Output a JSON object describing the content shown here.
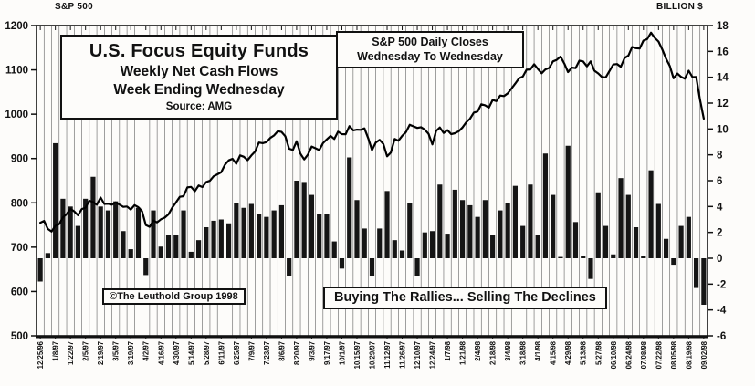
{
  "header": {
    "left_axis_title": "S&P 500",
    "right_axis_title": "BILLION $"
  },
  "title_box": {
    "line1": "U.S. Focus Equity Funds",
    "line2": "Weekly Net Cash Flows",
    "line3": "Week Ending Wednesday",
    "line4": "Source: AMG"
  },
  "legend_box": {
    "line1": "S&P 500 Daily Closes",
    "line2": "Wednesday To Wednesday"
  },
  "annotations": {
    "copyright": "©The Leuthold Group 1998",
    "slogan": "Buying The Rallies... Selling The Declines"
  },
  "colors": {
    "bar": "#151515",
    "line": "#000000",
    "grid": "#606060",
    "frame": "#111111",
    "background": "#fdfcfa"
  },
  "chart_data": {
    "type": "bar",
    "title": "U.S. Focus Equity Funds Weekly Net Cash Flows vs S&P 500",
    "xlabel": "Week Ending Wednesday",
    "grid": "vertical",
    "left_axis": {
      "title": "S&P 500",
      "range": [
        500,
        1200
      ],
      "ticks": [
        1200,
        1100,
        1000,
        900,
        800,
        700,
        600,
        500
      ]
    },
    "right_axis": {
      "title": "BILLION $",
      "range": [
        -6,
        18
      ],
      "ticks": [
        18,
        16,
        14,
        12,
        10,
        8,
        6,
        4,
        2,
        0,
        -2,
        -4,
        -6
      ]
    },
    "x_tick_labels": [
      "12/25/96",
      "1/8/97",
      "1/22/97",
      "2/5/97",
      "2/19/97",
      "3/5/97",
      "3/19/97",
      "4/2/97",
      "4/16/97",
      "4/30/97",
      "5/14/97",
      "5/28/97",
      "6/11/97",
      "6/25/97",
      "7/9/97",
      "7/23/97",
      "8/6/97",
      "8/20/97",
      "9/3/97",
      "9/17/97",
      "10/1/97",
      "10/15/97",
      "10/29/97",
      "11/12/97",
      "11/26/97",
      "12/10/97",
      "12/24/97",
      "1/7/98",
      "1/21/98",
      "2/4/98",
      "2/18/98",
      "3/4/98",
      "3/18/98",
      "4/1/98",
      "4/15/98",
      "4/29/98",
      "5/13/98",
      "5/27/98",
      "06/10/98",
      "06/24/98",
      "07/08/98",
      "07/22/98",
      "08/05/98",
      "08/19/98",
      "09/02/98"
    ],
    "weeks": [
      "12/25/96",
      "1/1/97",
      "1/8/97",
      "1/15/97",
      "1/22/97",
      "1/29/97",
      "2/5/97",
      "2/12/97",
      "2/19/97",
      "2/26/97",
      "3/5/97",
      "3/12/97",
      "3/19/97",
      "3/26/97",
      "4/2/97",
      "4/9/97",
      "4/16/97",
      "4/23/97",
      "4/30/97",
      "5/7/97",
      "5/14/97",
      "5/21/97",
      "5/28/97",
      "6/4/97",
      "6/11/97",
      "6/18/97",
      "6/25/97",
      "7/2/97",
      "7/9/97",
      "7/16/97",
      "7/23/97",
      "7/30/97",
      "8/6/97",
      "8/13/97",
      "8/20/97",
      "8/27/97",
      "9/3/97",
      "9/10/97",
      "9/17/97",
      "9/24/97",
      "10/1/97",
      "10/8/97",
      "10/15/97",
      "10/22/97",
      "10/29/97",
      "11/5/97",
      "11/12/97",
      "11/19/97",
      "11/26/97",
      "12/3/97",
      "12/10/97",
      "12/17/97",
      "12/24/97",
      "12/31/97",
      "1/7/98",
      "1/14/98",
      "1/21/98",
      "1/28/98",
      "2/4/98",
      "2/11/98",
      "2/18/98",
      "2/25/98",
      "3/4/98",
      "3/11/98",
      "3/18/98",
      "3/25/98",
      "4/1/98",
      "4/8/98",
      "4/15/98",
      "4/22/98",
      "4/29/98",
      "5/6/98",
      "5/13/98",
      "5/20/98",
      "5/27/98",
      "6/3/98",
      "6/10/98",
      "6/17/98",
      "6/24/98",
      "7/1/98",
      "7/8/98",
      "7/15/98",
      "7/22/98",
      "7/29/98",
      "8/5/98",
      "8/12/98",
      "8/19/98",
      "8/26/98",
      "9/2/98"
    ],
    "series": [
      {
        "name": "Weekly Net Cash Flows",
        "type": "bar",
        "axis": "right",
        "units": "billion $",
        "values": [
          -1.8,
          0.4,
          8.9,
          4.6,
          4.0,
          2.5,
          4.6,
          6.3,
          4.0,
          3.7,
          4.4,
          2.1,
          0.7,
          3.9,
          -1.3,
          3.7,
          0.9,
          1.8,
          1.8,
          3.7,
          0.5,
          1.4,
          2.4,
          2.9,
          3.0,
          2.7,
          4.3,
          3.9,
          4.2,
          3.4,
          3.2,
          3.7,
          4.1,
          -1.4,
          6.0,
          5.9,
          4.9,
          3.4,
          3.4,
          1.3,
          -0.8,
          7.8,
          4.5,
          2.3,
          -1.4,
          2.3,
          5.2,
          1.4,
          0.6,
          4.3,
          -1.4,
          2.0,
          2.1,
          5.7,
          1.9,
          5.3,
          4.5,
          4.1,
          3.2,
          4.5,
          1.8,
          3.7,
          4.3,
          5.6,
          2.5,
          5.7,
          1.8,
          8.1,
          4.9,
          0.1,
          8.7,
          2.8,
          0.2,
          -1.6,
          5.1,
          2.5,
          0.3,
          6.2,
          4.9,
          2.4,
          0.2,
          6.8,
          4.2,
          1.5,
          -0.5,
          2.5,
          3.2,
          -2.3,
          -3.6
        ]
      },
      {
        "name": "S&P 500 Daily Closes Wednesday To Wednesday",
        "type": "line",
        "axis": "left",
        "units": "index",
        "values": [
          755,
          741,
          748,
          767,
          786,
          772,
          789,
          802,
          812,
          798,
          801,
          791,
          785,
          790,
          750,
          760,
          763,
          774,
          801,
          815,
          836,
          839,
          847,
          860,
          869,
          896,
          888,
          904,
          907,
          936,
          937,
          952,
          960,
          922,
          939,
          898,
          927,
          919,
          943,
          944,
          955,
          973,
          965,
          968,
          919,
          942,
          905,
          944,
          951,
          976,
          969,
          965,
          932,
          970,
          964,
          957,
          970,
          990,
          1006,
          1020,
          1032,
          1042,
          1047,
          1069,
          1085,
          1101,
          1102,
          1101,
          1119,
          1130,
          1095,
          1104,
          1119,
          1119,
          1092,
          1083,
          1112,
          1107,
          1132,
          1149,
          1166,
          1184,
          1164,
          1125,
          1081,
          1084,
          1098,
          1084,
          990
        ]
      }
    ]
  }
}
